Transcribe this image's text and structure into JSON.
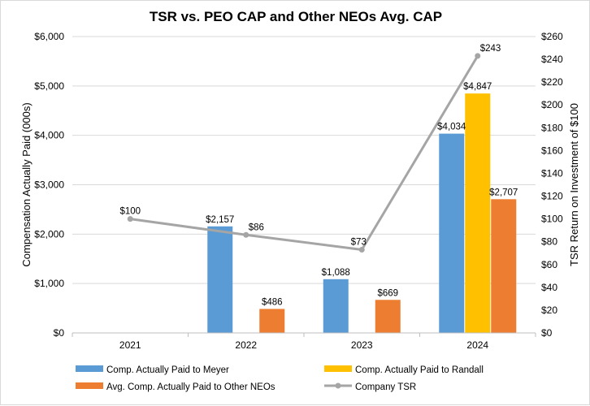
{
  "chart_data": {
    "type": "bar",
    "title": "TSR vs. PEO CAP and Other NEOs Avg. CAP",
    "categories": [
      "2021",
      "2022",
      "2023",
      "2024"
    ],
    "ylabel": "Compensation Actually Paid (000s)",
    "y2label": "TSR Return on Investment of $100",
    "ylim": [
      0,
      6000
    ],
    "y2lim": [
      0,
      260
    ],
    "y_ticks": [
      0,
      1000,
      2000,
      3000,
      4000,
      5000,
      6000
    ],
    "y_tick_labels": [
      "$0",
      "$1,000",
      "$2,000",
      "$3,000",
      "$4,000",
      "$5,000",
      "$6,000"
    ],
    "y2_ticks": [
      0,
      20,
      40,
      60,
      80,
      100,
      120,
      140,
      160,
      180,
      200,
      220,
      240,
      260
    ],
    "y2_tick_labels": [
      "$0",
      "$20",
      "$40",
      "$60",
      "$80",
      "$100",
      "$120",
      "$140",
      "$160",
      "$180",
      "$200",
      "$220",
      "$240",
      "$260"
    ],
    "legend_position": "bottom",
    "series": [
      {
        "name": "Comp. Actually Paid to Meyer",
        "kind": "bar",
        "axis": "left",
        "color": "#5B9BD5",
        "values": [
          null,
          2157,
          1088,
          4034
        ],
        "labels": [
          null,
          "$2,157",
          "$1,088",
          "$4,034"
        ]
      },
      {
        "name": "Comp. Actually Paid to Randall",
        "kind": "bar",
        "axis": "left",
        "color": "#FFC000",
        "values": [
          null,
          null,
          null,
          4847
        ],
        "labels": [
          null,
          null,
          null,
          "$4,847"
        ]
      },
      {
        "name": "Avg. Comp. Actually Paid to Other NEOs",
        "kind": "bar",
        "axis": "left",
        "color": "#ED7D31",
        "values": [
          null,
          486,
          669,
          2707
        ],
        "labels": [
          null,
          "$486",
          "$669",
          "$2,707"
        ]
      },
      {
        "name": "Company TSR",
        "kind": "line",
        "axis": "right",
        "color": "#A5A5A5",
        "values": [
          100,
          86,
          73,
          243
        ],
        "labels": [
          "$100",
          "$86",
          "$73",
          "$243"
        ]
      }
    ],
    "legend_order": [
      "Comp. Actually Paid to Meyer",
      "Comp. Actually Paid to Randall",
      "Avg. Comp. Actually Paid to Other NEOs",
      "Company TSR"
    ],
    "grid_color": "#d9d9d9"
  }
}
